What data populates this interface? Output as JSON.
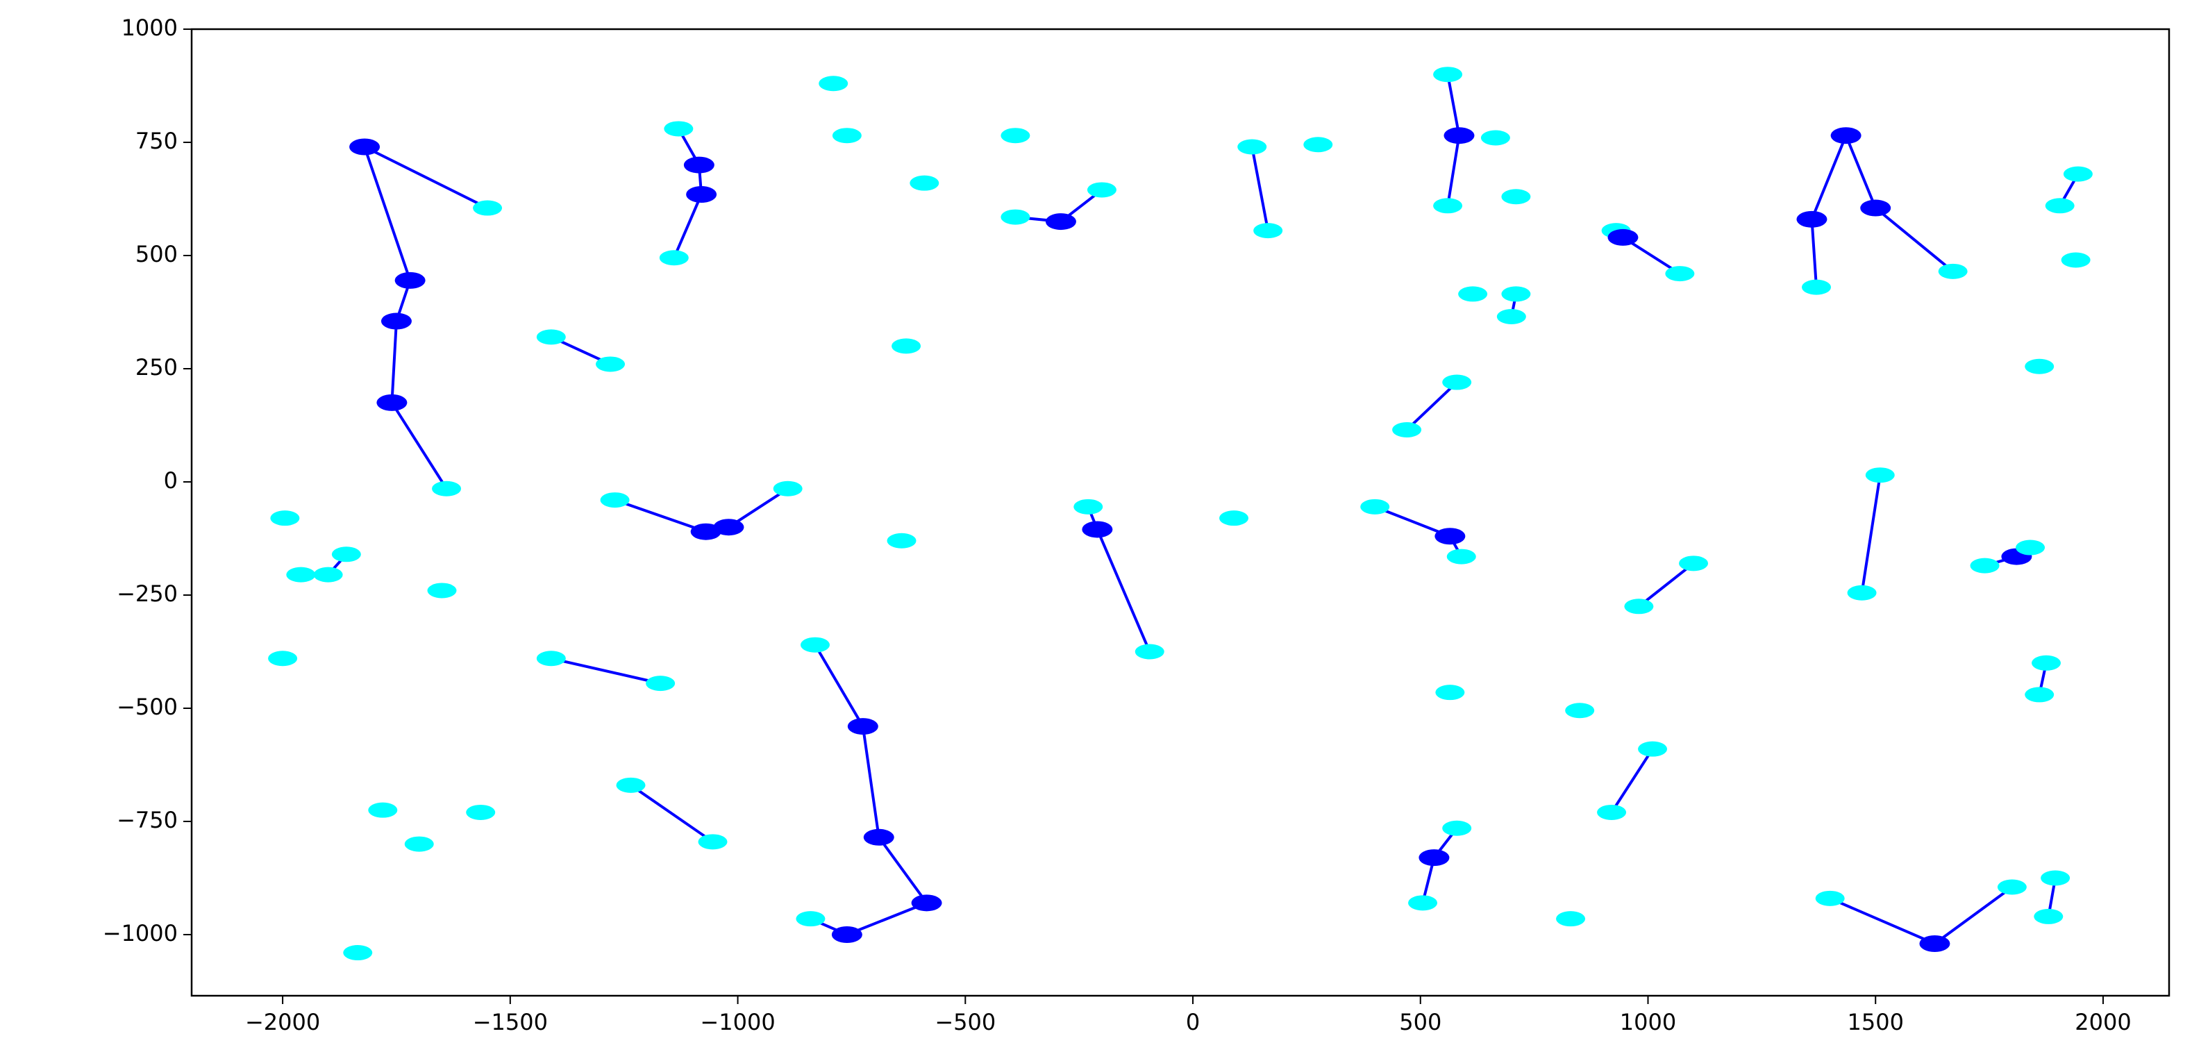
{
  "chart_data": {
    "type": "scatter",
    "xlim": [
      -2200,
      2145
    ],
    "ylim": [
      -1135,
      1000
    ],
    "xticks": [
      {
        "value": -2000,
        "label": "−2000"
      },
      {
        "value": -1500,
        "label": "−1500"
      },
      {
        "value": -1000,
        "label": "−1000"
      },
      {
        "value": -500,
        "label": "−500"
      },
      0,
      500,
      1000,
      1500,
      2000
    ],
    "yticks": [
      {
        "value": -1000,
        "label": "−1000"
      },
      {
        "value": -750,
        "label": "−750"
      },
      {
        "value": -500,
        "label": "−500"
      },
      {
        "value": -250,
        "label": "−250"
      },
      0,
      250,
      500,
      750,
      1000
    ],
    "end_color": "#00ffff",
    "hub_color": "#0000ff",
    "line_color": "#0000ff",
    "groups": [
      {
        "x": [
          -1550,
          -1820,
          -1720,
          -1750,
          -1760,
          -1640
        ],
        "y": [
          605,
          740,
          445,
          355,
          175,
          -15
        ]
      },
      {
        "x": [
          -1130,
          -1085,
          -1080,
          -1140
        ],
        "y": [
          780,
          700,
          635,
          495
        ]
      },
      {
        "x": [
          -390,
          -290,
          -200
        ],
        "y": [
          585,
          575,
          645
        ]
      },
      {
        "x": [
          130,
          165
        ],
        "y": [
          740,
          555
        ]
      },
      {
        "x": [
          560,
          585,
          560
        ],
        "y": [
          900,
          765,
          610
        ]
      },
      {
        "x": [
          930,
          945,
          1070
        ],
        "y": [
          555,
          540,
          460
        ]
      },
      {
        "x": [
          710,
          700
        ],
        "y": [
          415,
          365
        ]
      },
      {
        "x": [
          1370,
          1360,
          1435,
          1500,
          1670
        ],
        "y": [
          430,
          580,
          765,
          605,
          465
        ]
      },
      {
        "x": [
          1945,
          1905
        ],
        "y": [
          680,
          610
        ]
      },
      {
        "x": [
          -1410,
          -1280
        ],
        "y": [
          320,
          260
        ]
      },
      {
        "x": [
          470,
          580
        ],
        "y": [
          115,
          220
        ]
      },
      {
        "x": [
          -1270,
          -1070,
          -1020,
          -890
        ],
        "y": [
          -40,
          -110,
          -100,
          -15
        ]
      },
      {
        "x": [
          -230,
          -210,
          -95
        ],
        "y": [
          -55,
          -105,
          -375
        ]
      },
      {
        "x": [
          400,
          565,
          590
        ],
        "y": [
          -55,
          -120,
          -165
        ]
      },
      {
        "x": [
          -1860,
          -1900
        ],
        "y": [
          -160,
          -205
        ]
      },
      {
        "x": [
          1510,
          1470
        ],
        "y": [
          15,
          -245
        ]
      },
      {
        "x": [
          1740,
          1810,
          1840
        ],
        "y": [
          -185,
          -165,
          -145
        ]
      },
      {
        "x": [
          1100,
          980
        ],
        "y": [
          -180,
          -275
        ]
      },
      {
        "x": [
          -1410,
          -1170
        ],
        "y": [
          -390,
          -445
        ]
      },
      {
        "x": [
          -830,
          -725,
          -690,
          -585,
          -760,
          -840
        ],
        "y": [
          -360,
          -540,
          -785,
          -930,
          -1000,
          -965
        ]
      },
      {
        "x": [
          1875,
          1860
        ],
        "y": [
          -400,
          -470
        ]
      },
      {
        "x": [
          -1235,
          -1055
        ],
        "y": [
          -670,
          -795
        ]
      },
      {
        "x": [
          1010,
          920
        ],
        "y": [
          -590,
          -730
        ]
      },
      {
        "x": [
          580,
          530,
          505
        ],
        "y": [
          -765,
          -830,
          -930
        ]
      },
      {
        "x": [
          1400,
          1630,
          1800
        ],
        "y": [
          -920,
          -1020,
          -895
        ]
      },
      {
        "x": [
          1895,
          1880
        ],
        "y": [
          -875,
          -960
        ]
      }
    ],
    "points": {
      "x": [
        -790,
        -760,
        -390,
        -590,
        -630,
        275,
        665,
        710,
        615,
        1940,
        1860,
        -1995,
        -1960,
        -1650,
        -2000,
        -640,
        90,
        565,
        850,
        -1780,
        -1700,
        -1565,
        -1835,
        830
      ],
      "y": [
        880,
        765,
        765,
        660,
        300,
        745,
        760,
        630,
        415,
        490,
        255,
        -80,
        -205,
        -240,
        -390,
        -130,
        -80,
        -465,
        -505,
        -725,
        -800,
        -730,
        -1040,
        -965
      ]
    }
  }
}
